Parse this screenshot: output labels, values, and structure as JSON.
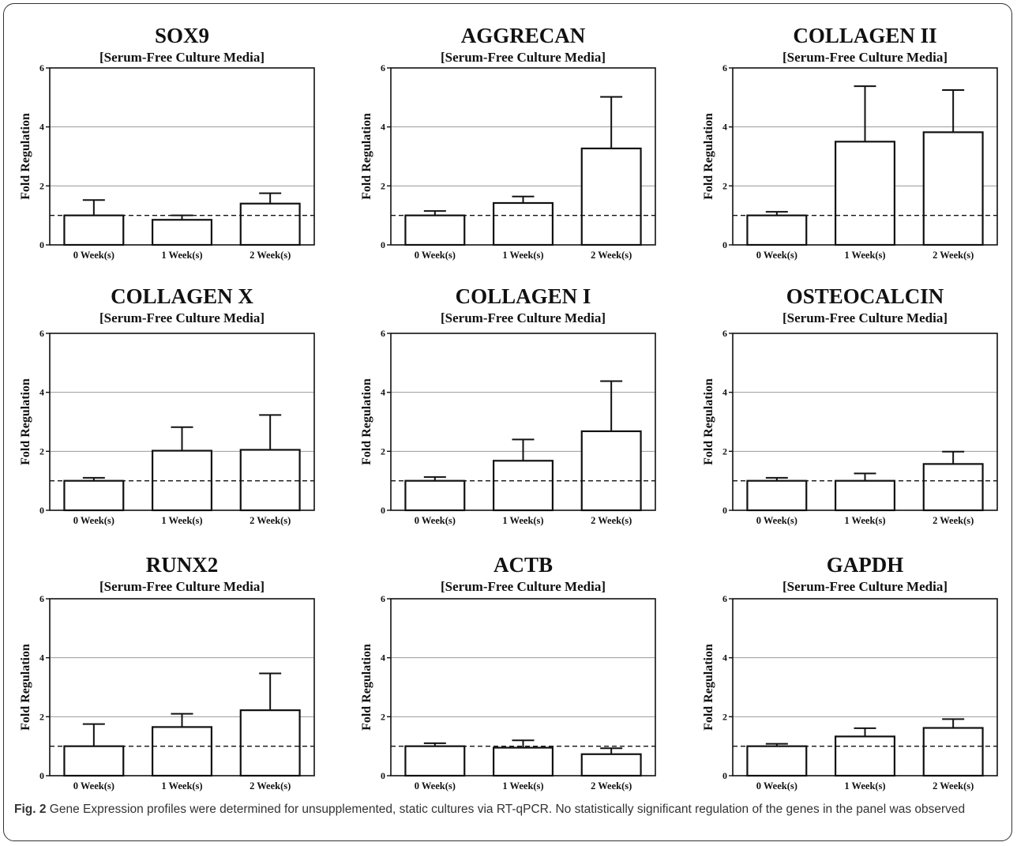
{
  "caption": {
    "label": "Fig. 2",
    "text": "Gene Expression profiles were determined for unsupplemented, static cultures via RT-qPCR. No statistically significant regulation of the genes in the panel was observed"
  },
  "colors": {
    "bar_fill": "#ffffff",
    "stroke": "#111111",
    "grid": "#9a9a9a"
  },
  "chart_data": [
    {
      "type": "bar",
      "title": "SOX9",
      "subtitle": "[Serum-Free Culture Media]",
      "ylabel": "Fold Regulation",
      "xlabel": "",
      "categories": [
        "0 Week(s)",
        "1 Week(s)",
        "2 Week(s)"
      ],
      "values": [
        1.0,
        0.85,
        1.4
      ],
      "error": [
        0.52,
        0.15,
        0.35
      ],
      "ylim": [
        0,
        6
      ],
      "yticks": [
        0,
        2,
        4,
        6
      ],
      "reference_line": 1,
      "grid": true
    },
    {
      "type": "bar",
      "title": "AGGRECAN",
      "subtitle": "[Serum-Free Culture Media]",
      "ylabel": "Fold Regulation",
      "xlabel": "",
      "categories": [
        "0 Week(s)",
        "1 Week(s)",
        "2 Week(s)"
      ],
      "values": [
        1.0,
        1.42,
        3.27
      ],
      "error": [
        0.15,
        0.22,
        1.75
      ],
      "ylim": [
        0,
        6
      ],
      "yticks": [
        0,
        2,
        4,
        6
      ],
      "reference_line": 1,
      "grid": true
    },
    {
      "type": "bar",
      "title": "COLLAGEN II",
      "subtitle": "[Serum-Free Culture Media]",
      "ylabel": "Fold Regulation",
      "xlabel": "",
      "categories": [
        "0 Week(s)",
        "1 Week(s)",
        "2 Week(s)"
      ],
      "values": [
        1.0,
        3.5,
        3.82
      ],
      "error": [
        0.12,
        1.88,
        1.43
      ],
      "ylim": [
        0,
        6
      ],
      "yticks": [
        0,
        2,
        4,
        6
      ],
      "reference_line": 1,
      "grid": true
    },
    {
      "type": "bar",
      "title": "COLLAGEN X",
      "subtitle": "[Serum-Free Culture Media]",
      "ylabel": "Fold Regulation",
      "xlabel": "",
      "categories": [
        "0 Week(s)",
        "1 Week(s)",
        "2 Week(s)"
      ],
      "values": [
        1.0,
        2.02,
        2.05
      ],
      "error": [
        0.1,
        0.8,
        1.18
      ],
      "ylim": [
        0,
        6
      ],
      "yticks": [
        0,
        2,
        4,
        6
      ],
      "reference_line": 1,
      "grid": true
    },
    {
      "type": "bar",
      "title": "COLLAGEN I",
      "subtitle": "[Serum-Free Culture Media]",
      "ylabel": "Fold Regulation",
      "xlabel": "",
      "categories": [
        "0 Week(s)",
        "1 Week(s)",
        "2 Week(s)"
      ],
      "values": [
        1.0,
        1.68,
        2.68
      ],
      "error": [
        0.13,
        0.72,
        1.7
      ],
      "ylim": [
        0,
        6
      ],
      "yticks": [
        0,
        2,
        4,
        6
      ],
      "reference_line": 1,
      "grid": true
    },
    {
      "type": "bar",
      "title": "OSTEOCALCIN",
      "subtitle": "[Serum-Free Culture Media]",
      "ylabel": "Fold Regulation",
      "xlabel": "",
      "categories": [
        "0 Week(s)",
        "1 Week(s)",
        "2 Week(s)"
      ],
      "values": [
        1.0,
        1.0,
        1.57
      ],
      "error": [
        0.1,
        0.25,
        0.42
      ],
      "ylim": [
        0,
        6
      ],
      "yticks": [
        0,
        2,
        4,
        6
      ],
      "reference_line": 1,
      "grid": true
    },
    {
      "type": "bar",
      "title": "RUNX2",
      "subtitle": "[Serum-Free Culture Media]",
      "ylabel": "Fold Regulation",
      "xlabel": "",
      "categories": [
        "0 Week(s)",
        "1 Week(s)",
        "2 Week(s)"
      ],
      "values": [
        1.0,
        1.65,
        2.22
      ],
      "error": [
        0.75,
        0.45,
        1.25
      ],
      "ylim": [
        0,
        6
      ],
      "yticks": [
        0,
        2,
        4,
        6
      ],
      "reference_line": 1,
      "grid": true
    },
    {
      "type": "bar",
      "title": "ACTB",
      "subtitle": "[Serum-Free Culture Media]",
      "ylabel": "Fold Regulation",
      "xlabel": "",
      "categories": [
        "0 Week(s)",
        "1 Week(s)",
        "2 Week(s)"
      ],
      "values": [
        1.0,
        0.95,
        0.73
      ],
      "error": [
        0.1,
        0.25,
        0.2
      ],
      "ylim": [
        0,
        6
      ],
      "yticks": [
        0,
        2,
        4,
        6
      ],
      "reference_line": 1,
      "grid": true
    },
    {
      "type": "bar",
      "title": "GAPDH",
      "subtitle": "[Serum-Free Culture Media]",
      "ylabel": "Fold Regulation",
      "xlabel": "",
      "categories": [
        "0 Week(s)",
        "1 Week(s)",
        "2 Week(s)"
      ],
      "values": [
        1.0,
        1.33,
        1.62
      ],
      "error": [
        0.08,
        0.28,
        0.3
      ],
      "ylim": [
        0,
        6
      ],
      "yticks": [
        0,
        2,
        4,
        6
      ],
      "reference_line": 1,
      "grid": true
    }
  ]
}
